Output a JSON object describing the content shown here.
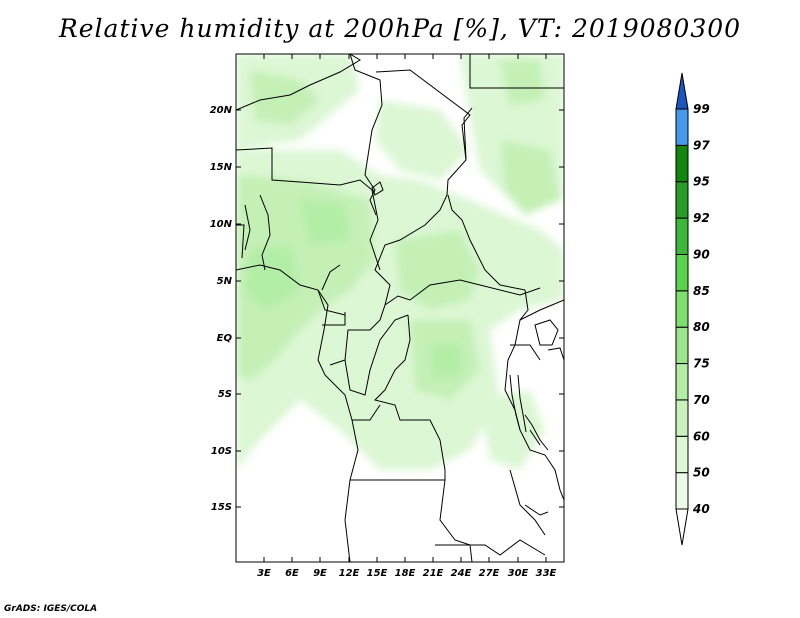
{
  "title": "Relative humidity at 200hPa [%], VT: 2019080300",
  "credit": "GrADS: IGES/COLA",
  "map": {
    "lat_ticks": [
      "20N",
      "15N",
      "10N",
      "5N",
      "EQ",
      "5S",
      "10S",
      "15S"
    ],
    "lon_ticks": [
      "3E",
      "6E",
      "9E",
      "12E",
      "15E",
      "18E",
      "21E",
      "24E",
      "27E",
      "30E",
      "33E"
    ]
  },
  "colorbar": {
    "levels": [
      "40",
      "50",
      "60",
      "70",
      "75",
      "80",
      "85",
      "90",
      "92",
      "95",
      "97",
      "99"
    ],
    "colors": [
      "#ecfbe8",
      "#dcf7d4",
      "#c9f2bd",
      "#b2eea6",
      "#9be68c",
      "#7ddf6e",
      "#58d34b",
      "#3db63a",
      "#279d27",
      "#118710",
      "#4499ee",
      "#2a70d8",
      "#1a55c0"
    ]
  }
}
